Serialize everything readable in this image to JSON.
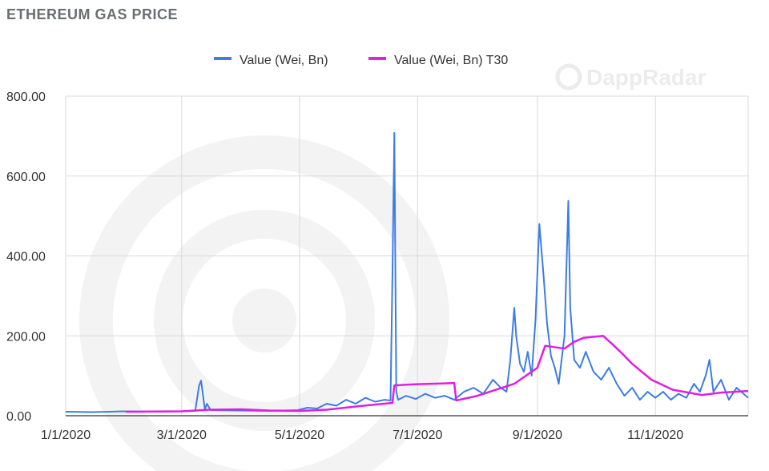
{
  "header": {
    "title": "ETHEREUM GAS PRICE"
  },
  "watermark": {
    "text": "DappRadar"
  },
  "colors": {
    "series_value": "#3d7de4",
    "series_t30": "#e01ee4",
    "grid": "#d9d9d9"
  },
  "chart_data": {
    "type": "line",
    "title": "",
    "xlabel": "",
    "ylabel": "",
    "ylim": [
      0,
      800
    ],
    "xlim": [
      "2020-01-01",
      "2020-12-19"
    ],
    "grid": true,
    "legend_position": "top",
    "x_ticks": [
      "2020-01-01",
      "2020-03-01",
      "2020-05-01",
      "2020-07-01",
      "2020-09-01",
      "2020-11-01"
    ],
    "x_tick_labels": [
      "1/1/2020",
      "3/1/2020",
      "5/1/2020",
      "7/1/2020",
      "9/1/2020",
      "11/1/2020"
    ],
    "y_ticks": [
      0,
      200,
      400,
      600,
      800
    ],
    "y_tick_labels": [
      "0.00",
      "200.00",
      "400.00",
      "600.00",
      "800.00"
    ],
    "series": [
      {
        "name": "Value (Wei, Bn)",
        "points": [
          [
            "2020-01-01",
            10
          ],
          [
            "2020-01-15",
            9
          ],
          [
            "2020-01-31",
            11
          ],
          [
            "2020-02-15",
            10
          ],
          [
            "2020-02-29",
            11
          ],
          [
            "2020-03-08",
            12
          ],
          [
            "2020-03-10",
            75
          ],
          [
            "2020-03-11",
            88
          ],
          [
            "2020-03-13",
            15
          ],
          [
            "2020-03-14",
            30
          ],
          [
            "2020-03-16",
            14
          ],
          [
            "2020-03-31",
            13
          ],
          [
            "2020-04-15",
            12
          ],
          [
            "2020-04-30",
            14
          ],
          [
            "2020-05-05",
            20
          ],
          [
            "2020-05-10",
            18
          ],
          [
            "2020-05-15",
            30
          ],
          [
            "2020-05-20",
            25
          ],
          [
            "2020-05-25",
            40
          ],
          [
            "2020-05-30",
            30
          ],
          [
            "2020-06-04",
            45
          ],
          [
            "2020-06-09",
            35
          ],
          [
            "2020-06-14",
            40
          ],
          [
            "2020-06-17",
            38
          ],
          [
            "2020-06-18",
            350
          ],
          [
            "2020-06-19",
            708
          ],
          [
            "2020-06-20",
            60
          ],
          [
            "2020-06-21",
            40
          ],
          [
            "2020-06-25",
            50
          ],
          [
            "2020-06-30",
            42
          ],
          [
            "2020-07-05",
            55
          ],
          [
            "2020-07-10",
            45
          ],
          [
            "2020-07-15",
            50
          ],
          [
            "2020-07-20",
            40
          ],
          [
            "2020-07-25",
            60
          ],
          [
            "2020-07-30",
            70
          ],
          [
            "2020-08-04",
            55
          ],
          [
            "2020-08-09",
            90
          ],
          [
            "2020-08-13",
            70
          ],
          [
            "2020-08-16",
            60
          ],
          [
            "2020-08-18",
            140
          ],
          [
            "2020-08-20",
            270
          ],
          [
            "2020-08-21",
            200
          ],
          [
            "2020-08-23",
            130
          ],
          [
            "2020-08-25",
            110
          ],
          [
            "2020-08-27",
            160
          ],
          [
            "2020-08-29",
            100
          ],
          [
            "2020-08-31",
            240
          ],
          [
            "2020-09-02",
            480
          ],
          [
            "2020-09-04",
            360
          ],
          [
            "2020-09-06",
            230
          ],
          [
            "2020-09-08",
            150
          ],
          [
            "2020-09-10",
            120
          ],
          [
            "2020-09-12",
            80
          ],
          [
            "2020-09-15",
            200
          ],
          [
            "2020-09-17",
            538
          ],
          [
            "2020-09-18",
            270
          ],
          [
            "2020-09-20",
            140
          ],
          [
            "2020-09-23",
            120
          ],
          [
            "2020-09-26",
            160
          ],
          [
            "2020-09-30",
            110
          ],
          [
            "2020-10-04",
            90
          ],
          [
            "2020-10-08",
            120
          ],
          [
            "2020-10-12",
            80
          ],
          [
            "2020-10-16",
            50
          ],
          [
            "2020-10-20",
            70
          ],
          [
            "2020-10-24",
            40
          ],
          [
            "2020-10-28",
            60
          ],
          [
            "2020-11-01",
            45
          ],
          [
            "2020-11-05",
            60
          ],
          [
            "2020-11-09",
            40
          ],
          [
            "2020-11-13",
            55
          ],
          [
            "2020-11-17",
            45
          ],
          [
            "2020-11-21",
            80
          ],
          [
            "2020-11-24",
            60
          ],
          [
            "2020-11-27",
            100
          ],
          [
            "2020-11-29",
            140
          ],
          [
            "2020-12-01",
            60
          ],
          [
            "2020-12-05",
            90
          ],
          [
            "2020-12-09",
            40
          ],
          [
            "2020-12-13",
            70
          ],
          [
            "2020-12-19",
            45
          ]
        ]
      },
      {
        "name": "Value (Wei, Bn) T30",
        "points": [
          [
            "2020-02-01",
            10
          ],
          [
            "2020-03-01",
            11
          ],
          [
            "2020-03-15",
            15
          ],
          [
            "2020-04-01",
            16
          ],
          [
            "2020-04-15",
            13
          ],
          [
            "2020-05-01",
            12
          ],
          [
            "2020-05-15",
            15
          ],
          [
            "2020-06-01",
            24
          ],
          [
            "2020-06-18",
            32
          ],
          [
            "2020-06-19",
            76
          ],
          [
            "2020-07-01",
            79
          ],
          [
            "2020-07-15",
            81
          ],
          [
            "2020-07-20",
            82
          ],
          [
            "2020-07-21",
            38
          ],
          [
            "2020-08-01",
            50
          ],
          [
            "2020-08-15",
            72
          ],
          [
            "2020-08-20",
            80
          ],
          [
            "2020-09-01",
            120
          ],
          [
            "2020-09-05",
            175
          ],
          [
            "2020-09-15",
            168
          ],
          [
            "2020-09-20",
            185
          ],
          [
            "2020-09-25",
            195
          ],
          [
            "2020-10-05",
            200
          ],
          [
            "2020-10-10",
            178
          ],
          [
            "2020-10-15",
            155
          ],
          [
            "2020-10-20",
            130
          ],
          [
            "2020-10-30",
            90
          ],
          [
            "2020-11-10",
            65
          ],
          [
            "2020-11-25",
            52
          ],
          [
            "2020-12-05",
            58
          ],
          [
            "2020-12-19",
            62
          ]
        ]
      }
    ]
  }
}
